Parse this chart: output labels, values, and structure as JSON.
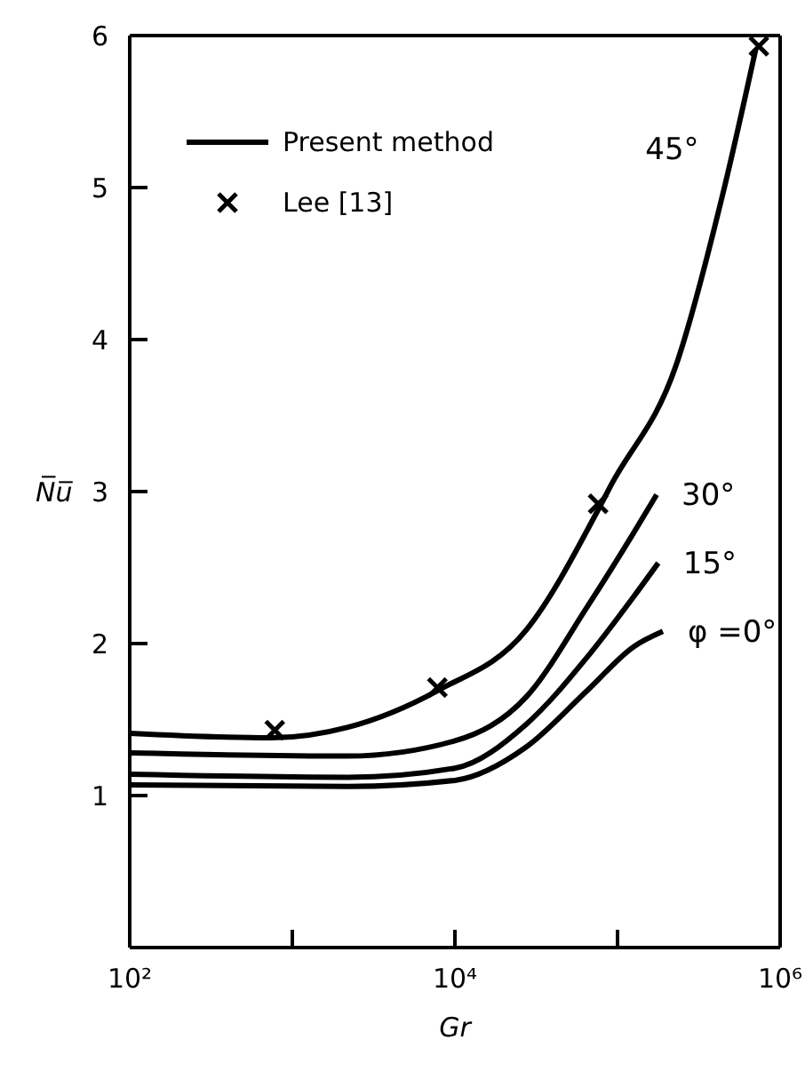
{
  "chart_data": {
    "type": "line",
    "xlabel": "Gr",
    "ylabel": "N̅u̅",
    "log": "x",
    "xlim": [
      100,
      1000000
    ],
    "ylim": [
      0,
      6
    ],
    "xticks": [
      {
        "value": 100,
        "label": "10²"
      },
      {
        "value": 1000,
        "label": null
      },
      {
        "value": 10000,
        "label": "10⁴"
      },
      {
        "value": 100000,
        "label": null
      },
      {
        "value": 1000000,
        "label": "10⁶"
      }
    ],
    "yticks": [
      1,
      2,
      3,
      4,
      5,
      6
    ],
    "grid": false,
    "legend": "top left",
    "marker": "none",
    "line_style": "solid",
    "annotations": [
      "Present method"
    ],
    "series": [
      {
        "name": "45°",
        "color": "#000000",
        "x": [
          100,
          740,
          2200,
          7800,
          27500,
          76000,
          91000,
          229000,
          447000,
          708000
        ],
        "values": [
          1.41,
          1.38,
          1.45,
          1.69,
          2.09,
          2.88,
          3.04,
          3.83,
          4.97,
          5.91
        ]
      },
      {
        "name": "30°",
        "color": "#000000",
        "x": [
          100,
          2200,
          10000,
          27500,
          65000,
          126000,
          174000
        ],
        "values": [
          1.28,
          1.26,
          1.36,
          1.65,
          2.24,
          2.73,
          2.98
        ]
      },
      {
        "name": "15°",
        "color": "#000000",
        "x": [
          100,
          2200,
          10000,
          27500,
          65000,
          126000,
          178000
        ],
        "values": [
          1.14,
          1.12,
          1.18,
          1.47,
          1.91,
          2.31,
          2.53
        ]
      },
      {
        "name": "φ =0°",
        "color": "#000000",
        "x": [
          100,
          2200,
          10000,
          27500,
          65000,
          126000,
          190000
        ],
        "values": [
          1.07,
          1.06,
          1.1,
          1.32,
          1.69,
          1.98,
          2.08
        ]
      },
      {
        "name": "Lee [13]",
        "type": "scatter",
        "marker": "cross",
        "color": "#000000",
        "x": [
          780,
          7800,
          76000,
          740000
        ],
        "values": [
          1.43,
          1.71,
          2.92,
          5.93
        ]
      }
    ]
  }
}
